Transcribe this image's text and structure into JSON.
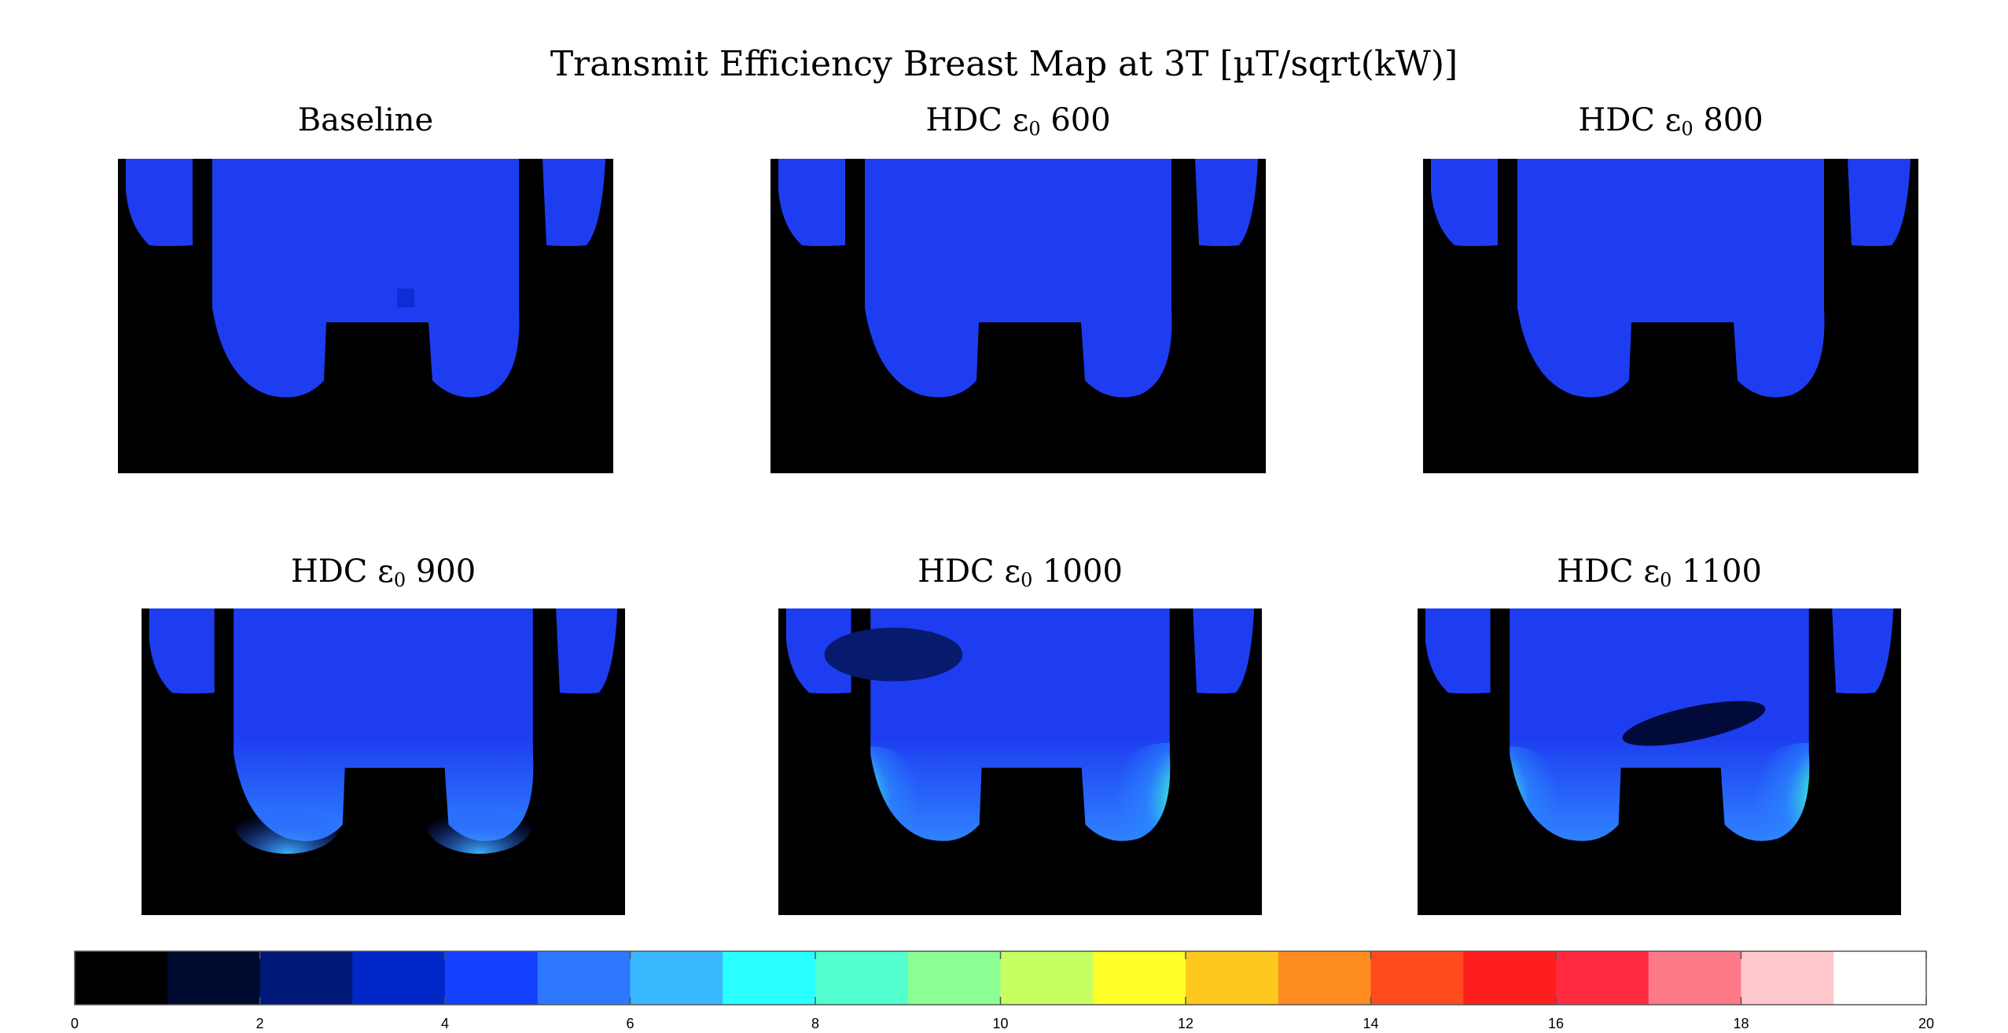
{
  "title": "Transmit Efficiency Breast Map at 3T [µT/sqrt(kW)]",
  "panels": [
    {
      "id": "baseline",
      "prefix": "Baseline",
      "eps": "",
      "sub": "",
      "value": "",
      "hotspot": 0.0
    },
    {
      "id": "hdc-600",
      "prefix": "HDC ",
      "eps": "ε",
      "sub": "0",
      "value": " 600",
      "hotspot": 0.05
    },
    {
      "id": "hdc-800",
      "prefix": "HDC ",
      "eps": "ε",
      "sub": "0",
      "value": " 800",
      "hotspot": 0.12
    },
    {
      "id": "hdc-900",
      "prefix": "HDC ",
      "eps": "ε",
      "sub": "0",
      "value": " 900",
      "hotspot": 0.3
    },
    {
      "id": "hdc-1000",
      "prefix": "HDC ",
      "eps": "ε",
      "sub": "0",
      "value": " 1000",
      "hotspot": 1.0
    },
    {
      "id": "hdc-1100",
      "prefix": "HDC ",
      "eps": "ε",
      "sub": "0",
      "value": " 1100",
      "hotspot": 1.0
    }
  ],
  "colorbar": {
    "min": 0,
    "max": 20,
    "ticks": [
      "0",
      "2",
      "4",
      "6",
      "8",
      "10",
      "12",
      "14",
      "16",
      "18",
      "20"
    ],
    "colors": [
      "#000000",
      "#000a2e",
      "#001878",
      "#0028c8",
      "#1440ff",
      "#2d78ff",
      "#3ab8ff",
      "#2affff",
      "#52ffce",
      "#8cff94",
      "#c6ff62",
      "#ffff2a",
      "#ffc81e",
      "#ff8c1e",
      "#ff4a1e",
      "#ff1e1e",
      "#ff2a40",
      "#ff7a88",
      "#ffc8cc",
      "#ffffff"
    ]
  },
  "colors": {
    "background": "#000000",
    "tissue_base": "#1e3df0",
    "tissue_dark": "#0f2cd6"
  }
}
